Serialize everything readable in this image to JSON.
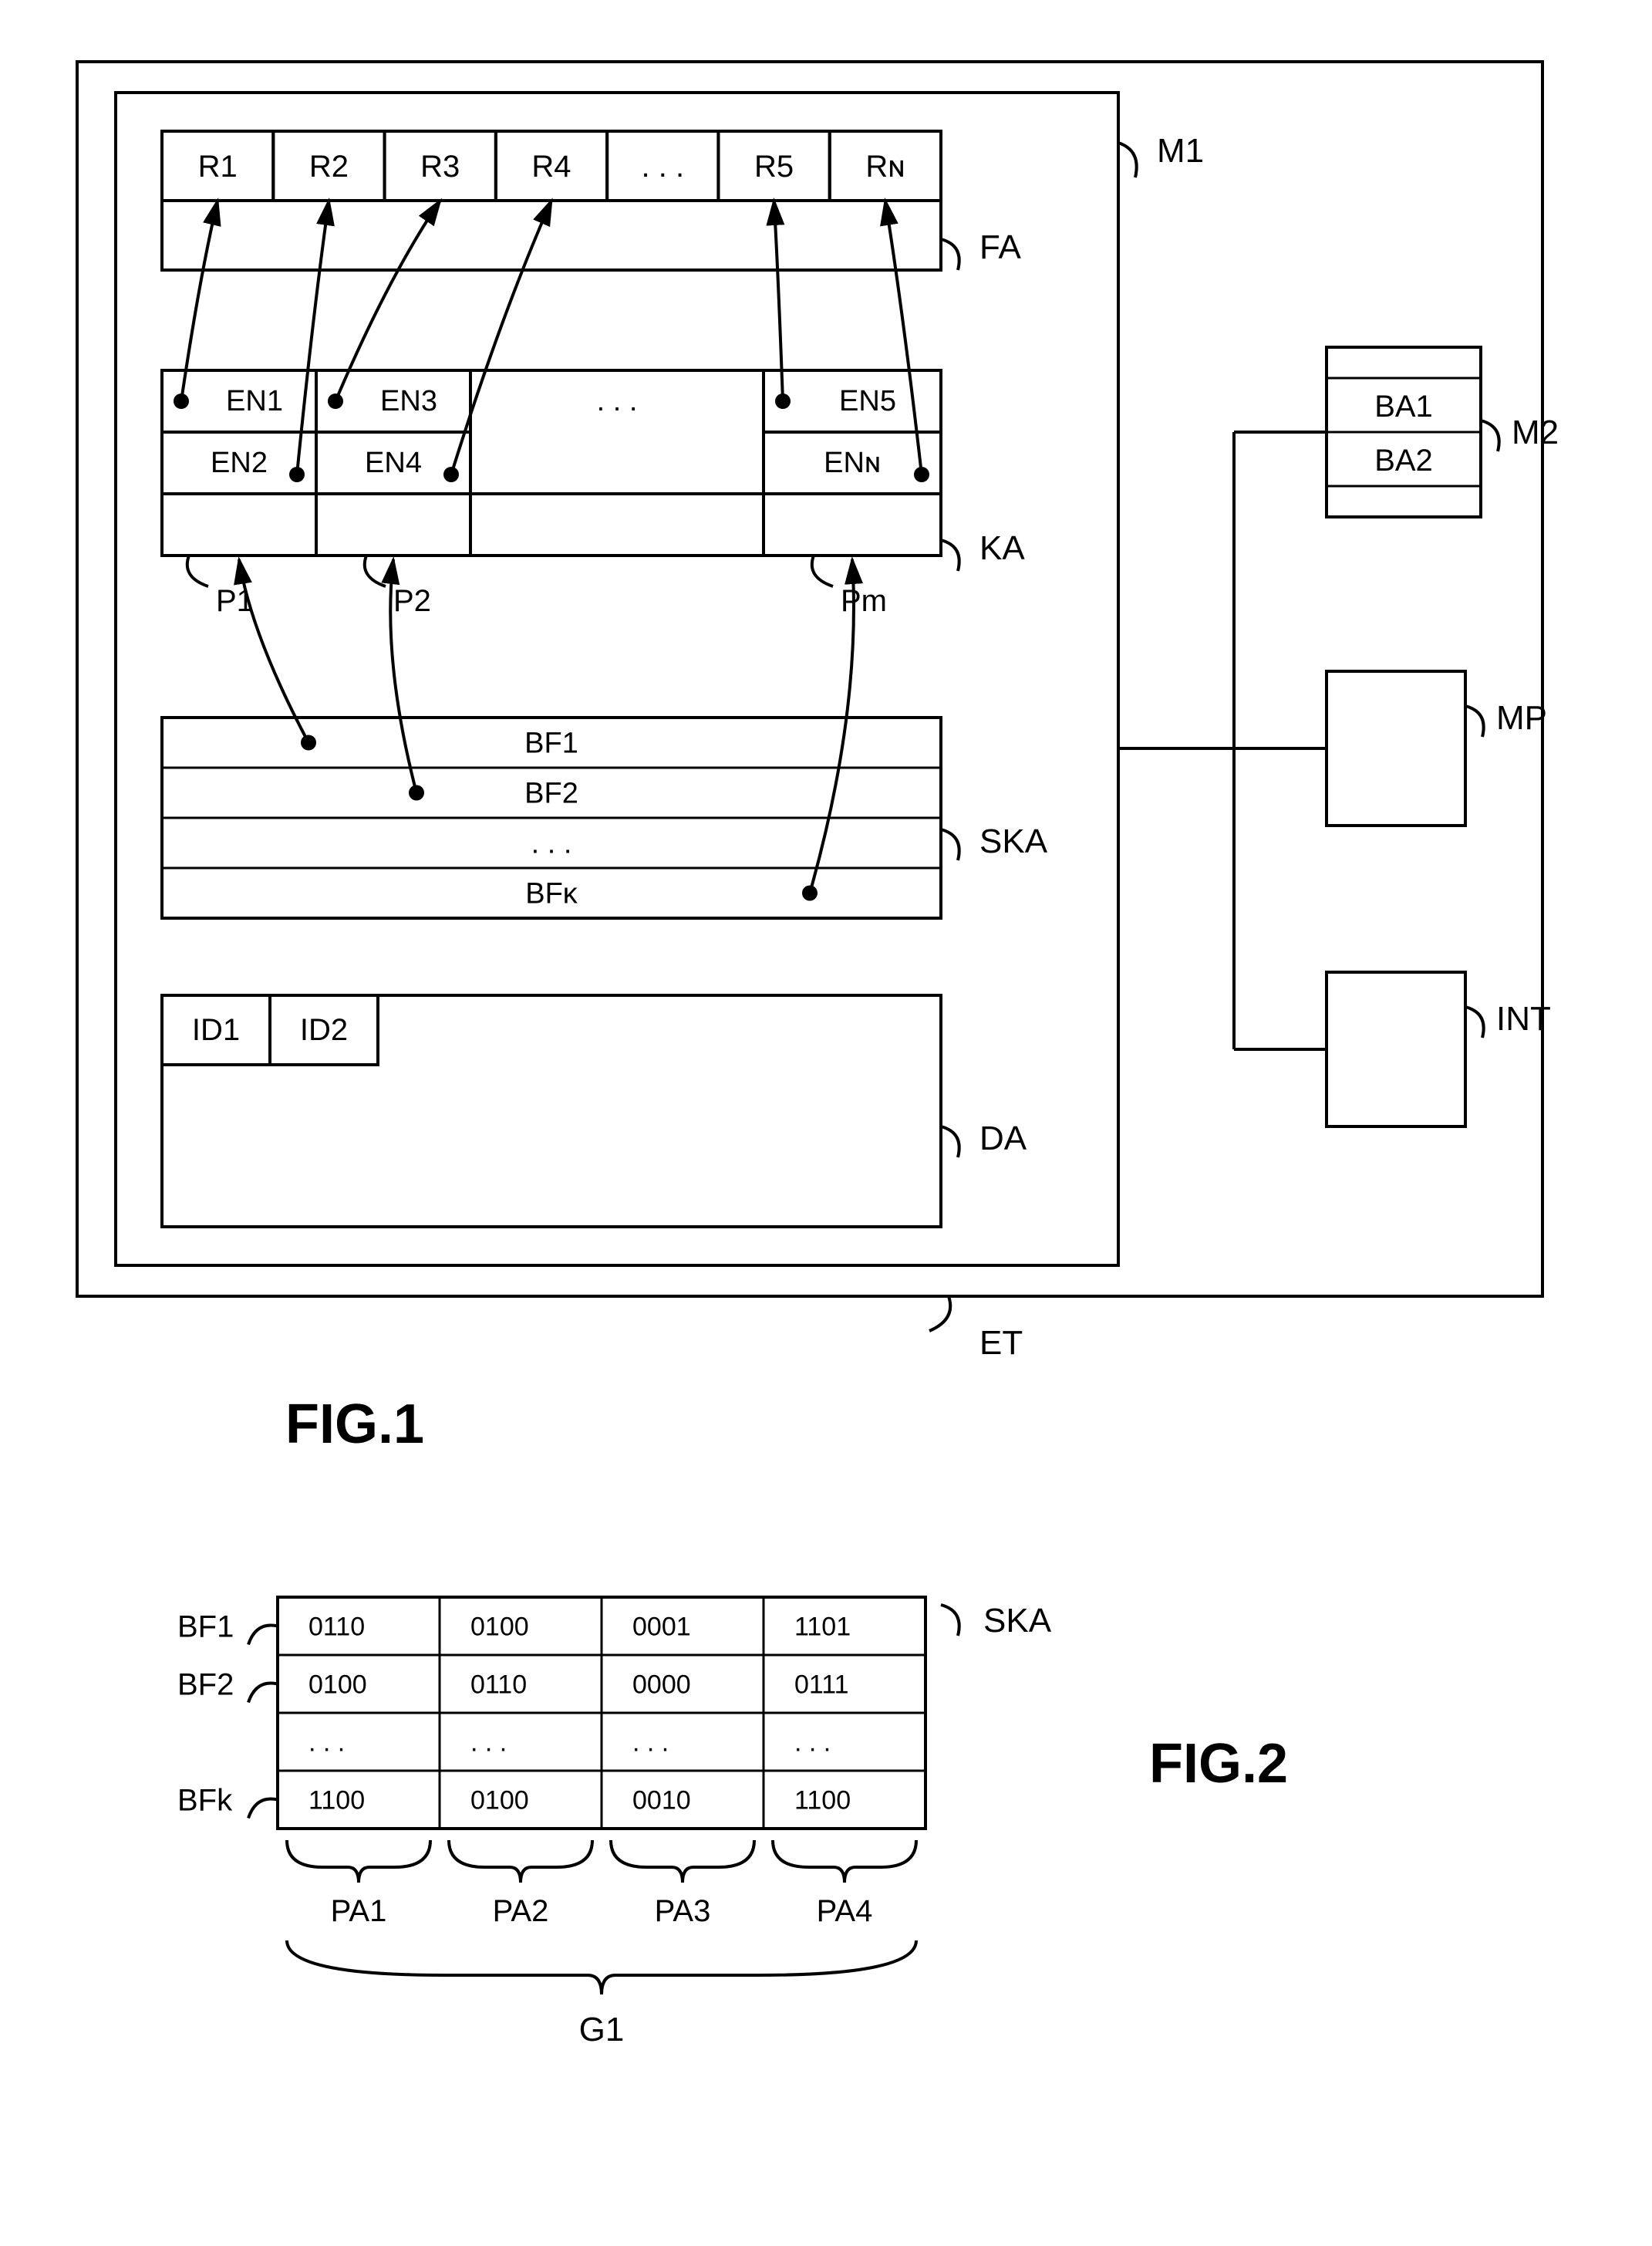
{
  "fig1": {
    "title": "FIG.1",
    "outer_label": "ET",
    "m1_label": "M1",
    "fa": {
      "label": "FA",
      "cells": [
        "R1",
        "R2",
        "R3",
        "R4",
        ". . .",
        "R5",
        "Rɴ"
      ]
    },
    "ka": {
      "label": "KA",
      "p_labels": [
        "P1",
        "P2",
        "Pm"
      ],
      "col1": [
        "EN1",
        "EN2"
      ],
      "col2": [
        "EN3",
        "EN4"
      ],
      "col3": [
        ". . ."
      ],
      "col4": [
        "EN5",
        "ENɴ"
      ]
    },
    "ska": {
      "label": "SKA",
      "rows": [
        "BF1",
        "BF2",
        ". . .",
        "BFᴋ"
      ]
    },
    "da": {
      "label": "DA",
      "cells": [
        "ID1",
        "ID2"
      ]
    },
    "m2": {
      "label": "M2",
      "cells": [
        "BA1",
        "BA2"
      ]
    },
    "mp_label": "MP",
    "int_label": "INT"
  },
  "fig2": {
    "title": "FIG.2",
    "ska_label": "SKA",
    "row_labels": [
      "BF1",
      "BF2",
      "BFk"
    ],
    "rows": [
      [
        "0110",
        "0100",
        "0001",
        "1101"
      ],
      [
        "0100",
        "0110",
        "0000",
        "0111"
      ],
      [
        ". . .",
        ". . .",
        ". . .",
        ". . ."
      ],
      [
        "1100",
        "0100",
        "0010",
        "1100"
      ]
    ],
    "col_labels": [
      "PA1",
      "PA2",
      "PA3",
      "PA4"
    ],
    "group_label": "G1"
  },
  "style": {
    "stroke": "#000000",
    "stroke_width": 4,
    "stroke_width_thin": 3,
    "bg": "#ffffff",
    "font_size_label": 44,
    "font_size_small": 38,
    "font_size_fig": 64,
    "font_size_mono": 34
  }
}
